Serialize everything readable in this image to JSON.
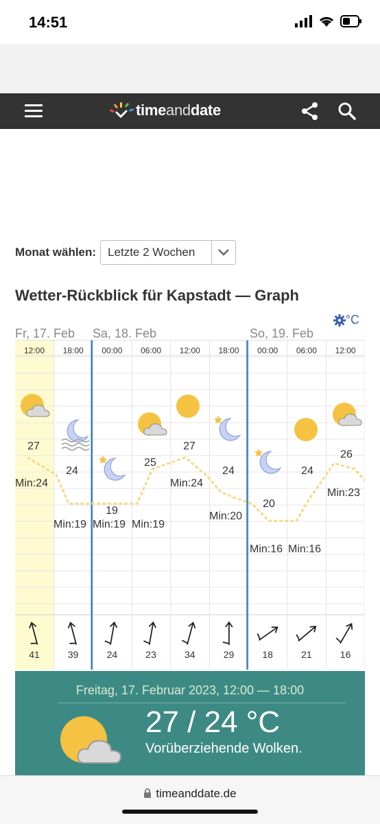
{
  "status": {
    "time": "14:51"
  },
  "nav": {
    "logo_time": "time",
    "logo_and": "and",
    "logo_date": "date"
  },
  "month": {
    "label": "Monat wählen:",
    "value": "Letzte 2 Wochen"
  },
  "title": "Wetter-Rückblick für Kapstadt — Graph",
  "unit": "°C",
  "days": [
    "Fr, 17. Feb",
    "Sa, 18. Feb",
    "So, 19. Feb"
  ],
  "columns": [
    {
      "time": "12:00",
      "temp": "27",
      "min": "Min:24",
      "wind": "41",
      "icon": "sun-cloud-icon"
    },
    {
      "time": "18:00",
      "temp": "24",
      "min": "Min:19",
      "wind": "39",
      "icon": "moon-fog-icon"
    },
    {
      "time": "00:00",
      "temp": "19",
      "min": "Min:19",
      "wind": "24",
      "icon": "moon-star-icon"
    },
    {
      "time": "06:00",
      "temp": "25",
      "min": "Min:19",
      "wind": "23",
      "icon": "sun-cloud-icon"
    },
    {
      "time": "12:00",
      "temp": "27",
      "min": "Min:24",
      "wind": "34",
      "icon": "sun-icon"
    },
    {
      "time": "18:00",
      "temp": "24",
      "min": "Min:20",
      "wind": "29",
      "icon": "moon-star-icon"
    },
    {
      "time": "00:00",
      "temp": "20",
      "min": "Min:16",
      "wind": "18",
      "icon": "moon-star-icon"
    },
    {
      "time": "06:00",
      "temp": "24",
      "min": "Min:16",
      "wind": "21",
      "icon": "sun-icon"
    },
    {
      "time": "12:00",
      "temp": "26",
      "min": "Min:23",
      "wind": "16",
      "icon": "sun-cloud-icon"
    }
  ],
  "detail": {
    "date": "Freitag, 17. Februar 2023, 12:00 — 18:00",
    "temp": "27 / 24 °C",
    "desc": "Vorüberziehende Wolken."
  },
  "url": "timeanddate.de"
}
